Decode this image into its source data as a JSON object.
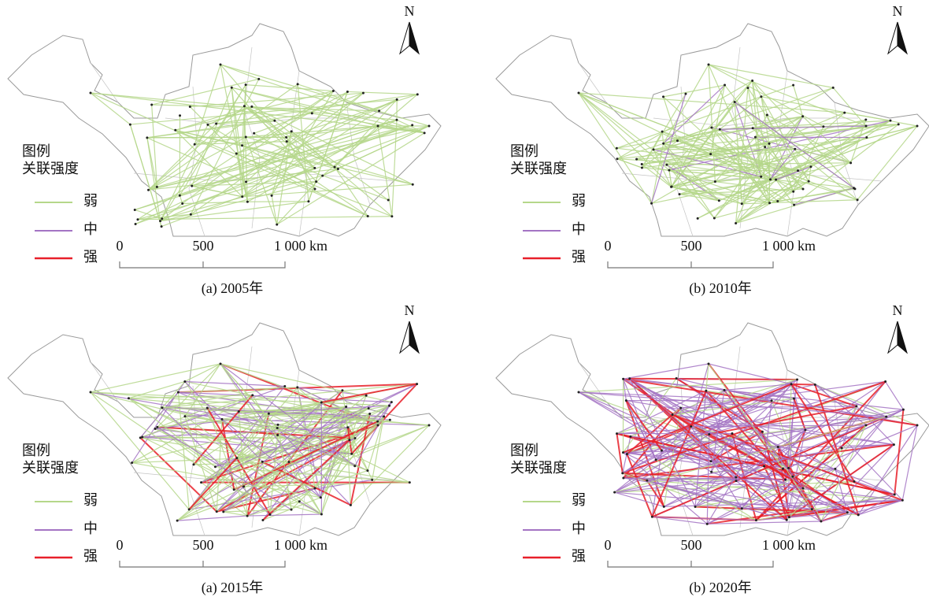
{
  "panels": [
    {
      "caption": "(a) 2005年",
      "legend": {
        "title": [
          "图例",
          "关联强度"
        ],
        "items": [
          "弱",
          "中",
          "强"
        ]
      },
      "scale": [
        "0",
        "500",
        "1 000 km"
      ],
      "north": "N"
    },
    {
      "caption": "(b) 2010年",
      "legend": {
        "title": [
          "图例",
          "关联强度"
        ],
        "items": [
          "弱",
          "中",
          "强"
        ]
      },
      "scale": [
        "0",
        "500",
        "1 000 km"
      ],
      "north": "N"
    },
    {
      "caption": "(a) 2015年",
      "legend": {
        "title": [
          "图例",
          "关联强度"
        ],
        "items": [
          "弱",
          "中",
          "强"
        ]
      },
      "scale": [
        "0",
        "500",
        "1 000 km"
      ],
      "north": "N"
    },
    {
      "caption": "(b) 2020年",
      "legend": {
        "title": [
          "图例",
          "关联强度"
        ],
        "items": [
          "弱",
          "中",
          "强"
        ]
      },
      "scale": [
        "0",
        "500",
        "1 000 km"
      ],
      "north": "N"
    }
  ]
}
